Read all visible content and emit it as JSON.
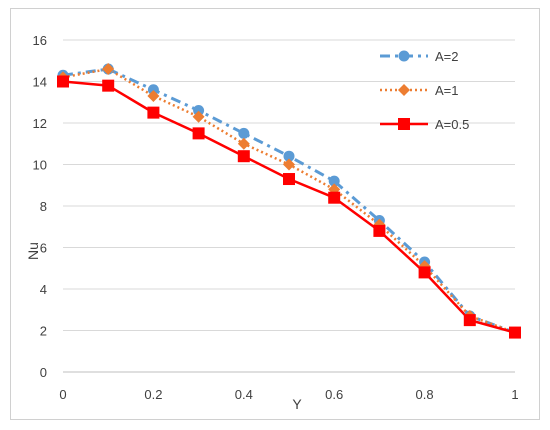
{
  "chart_data": {
    "type": "line",
    "title": "",
    "xlabel": "Y",
    "ylabel": "Nu",
    "xlim": [
      0,
      1
    ],
    "ylim": [
      0,
      16
    ],
    "xticks": [
      0,
      0.2,
      0.4,
      0.6,
      0.8,
      1
    ],
    "xtick_labels": [
      "0",
      "0.2",
      "0.4",
      "0.6",
      "0.8",
      "1"
    ],
    "yticks": [
      0,
      2,
      4,
      6,
      8,
      10,
      12,
      14,
      16
    ],
    "ytick_labels": [
      "0",
      "2",
      "4",
      "6",
      "8",
      "10",
      "12",
      "14",
      "16"
    ],
    "grid": "horizontal",
    "legend_position": "top-right",
    "x": [
      0,
      0.1,
      0.2,
      0.3,
      0.4,
      0.5,
      0.6,
      0.7,
      0.8,
      0.9,
      1
    ],
    "series": [
      {
        "name": "A=2",
        "values": [
          14.3,
          14.6,
          13.6,
          12.6,
          11.5,
          10.4,
          9.2,
          7.3,
          5.3,
          2.7,
          1.9
        ],
        "color": "#5B9BD5",
        "line_style": "dash-dot",
        "marker": "circle"
      },
      {
        "name": "A=1",
        "values": [
          14.2,
          14.6,
          13.3,
          12.3,
          11.0,
          10.0,
          8.8,
          7.1,
          5.1,
          2.7,
          1.9
        ],
        "color": "#ED7D31",
        "line_style": "dotted",
        "marker": "diamond"
      },
      {
        "name": "A=0.5",
        "values": [
          14.0,
          13.8,
          12.5,
          11.5,
          10.4,
          9.3,
          8.4,
          6.8,
          4.8,
          2.5,
          1.9
        ],
        "color": "#FF0000",
        "line_style": "solid",
        "marker": "square"
      }
    ]
  }
}
